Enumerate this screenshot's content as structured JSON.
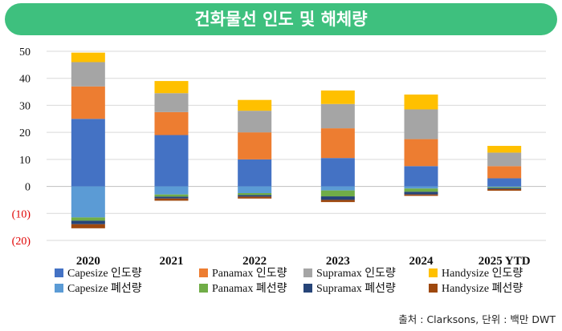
{
  "header": {
    "title": "건화물선 인도 및 해체량"
  },
  "source": "출처 : Clarksons, 단위 : 백만 DWT",
  "colors": {
    "capesize_delivery": "#4472c4",
    "panamax_delivery": "#ed7d31",
    "supramax_delivery": "#a5a5a5",
    "handysize_delivery": "#ffc000",
    "capesize_demolition": "#5b9bd5",
    "panamax_demolition": "#70ad47",
    "supramax_demolition": "#264478",
    "handysize_demolition": "#9e480e"
  },
  "chart_data": {
    "type": "bar",
    "stacked": true,
    "title": "",
    "xlabel": "",
    "ylabel": "",
    "categories": [
      "2020",
      "2021",
      "2022",
      "2023",
      "2024",
      "2025 YTD"
    ],
    "y_ticks": [
      "50",
      "40",
      "30",
      "20",
      "10",
      "0",
      "(10)",
      "(20)"
    ],
    "ylim": [
      -20,
      50
    ],
    "grid": true,
    "legend_position": "bottom",
    "series": [
      {
        "name": "Capesize 인도량",
        "values": [
          25,
          19,
          10,
          10.5,
          7.5,
          3
        ],
        "color_key": "capesize_delivery"
      },
      {
        "name": "Panamax 인도량",
        "values": [
          12,
          8.5,
          10,
          11,
          10,
          4.5
        ],
        "color_key": "panamax_delivery"
      },
      {
        "name": "Supramax 인도량",
        "values": [
          9,
          7,
          8,
          9,
          11,
          5
        ],
        "color_key": "supramax_delivery"
      },
      {
        "name": "Handysize 인도량",
        "values": [
          3.5,
          4.5,
          4,
          5,
          5.5,
          2.5
        ],
        "color_key": "handysize_delivery"
      },
      {
        "name": "Capesize 폐선량",
        "values": [
          -11.5,
          -3,
          -2.5,
          -1.5,
          -0.8,
          -0.3
        ],
        "color_key": "capesize_demolition"
      },
      {
        "name": "Panamax 폐선량",
        "values": [
          -1.2,
          -0.8,
          -0.7,
          -2.2,
          -1.2,
          -0.3
        ],
        "color_key": "panamax_demolition"
      },
      {
        "name": "Supramax 폐선량",
        "values": [
          -1.3,
          -0.7,
          -0.6,
          -1.3,
          -1,
          -0.4
        ],
        "color_key": "supramax_demolition"
      },
      {
        "name": "Handysize 폐선량",
        "values": [
          -1.5,
          -0.8,
          -0.7,
          -0.8,
          -0.5,
          -0.6
        ],
        "color_key": "handysize_demolition"
      }
    ]
  }
}
